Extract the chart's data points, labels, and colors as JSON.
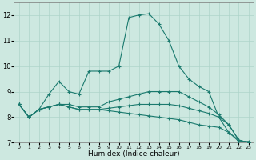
{
  "xlabel": "Humidex (Indice chaleur)",
  "background_color": "#cde8e0",
  "grid_color": "#aed4ca",
  "line_color": "#1a7a6e",
  "xlim": [
    -0.5,
    23.5
  ],
  "ylim": [
    7,
    12.5
  ],
  "yticks": [
    7,
    8,
    9,
    10,
    11,
    12
  ],
  "xticks": [
    0,
    1,
    2,
    3,
    4,
    5,
    6,
    7,
    8,
    9,
    10,
    11,
    12,
    13,
    14,
    15,
    16,
    17,
    18,
    19,
    20,
    21,
    22,
    23
  ],
  "series": [
    [
      8.5,
      8.0,
      8.3,
      8.9,
      9.4,
      9.0,
      8.9,
      9.8,
      9.8,
      9.8,
      10.0,
      11.9,
      12.0,
      12.05,
      11.65,
      11.0,
      10.0,
      9.5,
      9.2,
      9.0,
      8.0,
      7.4,
      7.05,
      7.05
    ],
    [
      8.5,
      8.0,
      8.3,
      8.4,
      8.5,
      8.5,
      8.4,
      8.4,
      8.4,
      8.6,
      8.7,
      8.8,
      8.9,
      9.0,
      9.0,
      9.0,
      9.0,
      8.8,
      8.6,
      8.4,
      8.1,
      7.7,
      7.1,
      7.0
    ],
    [
      8.5,
      8.0,
      8.3,
      8.4,
      8.5,
      8.4,
      8.3,
      8.3,
      8.3,
      8.35,
      8.4,
      8.45,
      8.5,
      8.5,
      8.5,
      8.5,
      8.45,
      8.35,
      8.25,
      8.15,
      8.0,
      7.7,
      7.1,
      7.0
    ],
    [
      8.5,
      8.0,
      8.3,
      8.4,
      8.5,
      8.4,
      8.3,
      8.3,
      8.3,
      8.25,
      8.2,
      8.15,
      8.1,
      8.05,
      8.0,
      7.95,
      7.9,
      7.8,
      7.7,
      7.65,
      7.6,
      7.4,
      7.1,
      7.0
    ]
  ]
}
